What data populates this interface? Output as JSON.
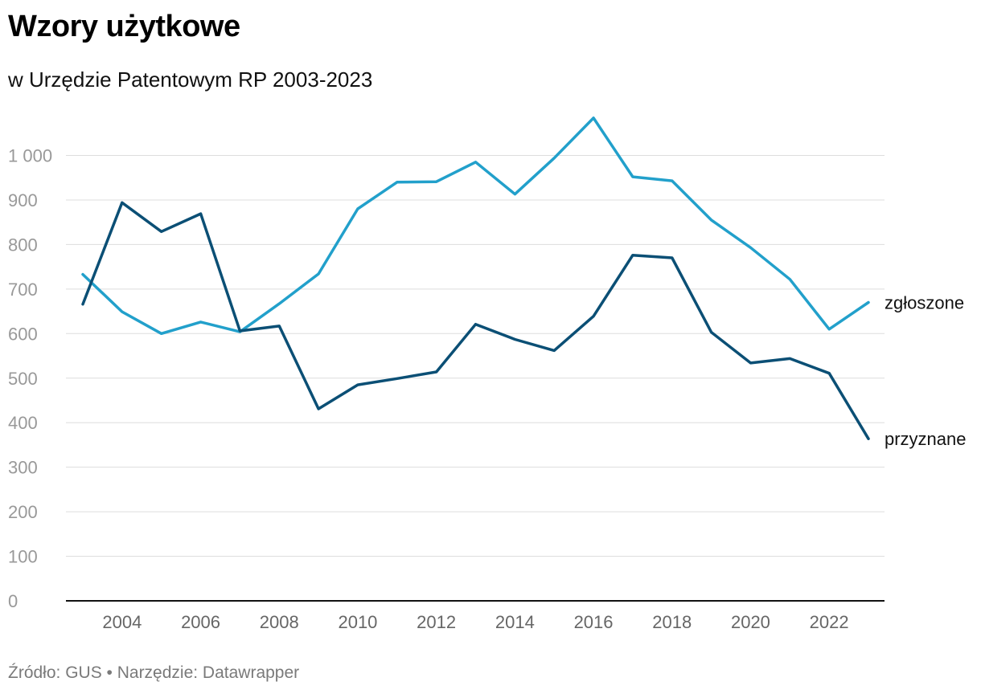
{
  "header": {
    "title": "Wzory użytkowe",
    "subtitle": "w Urzędzie Patentowym RP 2003-2023"
  },
  "footer": {
    "source": "Źródło: GUS • Narzędzie: Datawrapper"
  },
  "chart_data": {
    "type": "line",
    "title": "Wzory użytkowe",
    "subtitle": "w Urzędzie Patentowym RP 2003-2023",
    "x": [
      2003,
      2004,
      2005,
      2006,
      2007,
      2008,
      2009,
      2010,
      2011,
      2012,
      2013,
      2014,
      2015,
      2016,
      2017,
      2018,
      2019,
      2020,
      2021,
      2022,
      2023
    ],
    "series": [
      {
        "name": "zgłoszone",
        "color": "#22a0cb",
        "values": [
          733,
          649,
          600,
          626,
          604,
          667,
          734,
          880,
          940,
          941,
          985,
          913,
          994,
          1084,
          952,
          943,
          855,
          793,
          722,
          610,
          670
        ]
      },
      {
        "name": "przyznane",
        "color": "#0b4f75",
        "values": [
          666,
          894,
          829,
          869,
          606,
          617,
          431,
          485,
          499,
          514,
          621,
          587,
          562,
          639,
          776,
          770,
          603,
          534,
          544,
          511,
          364
        ]
      }
    ],
    "ylim": [
      0,
      1100
    ],
    "y_ticks": [
      0,
      100,
      200,
      300,
      400,
      500,
      600,
      700,
      800,
      900,
      1000
    ],
    "y_tick_labels": [
      "0",
      "100",
      "200",
      "300",
      "400",
      "500",
      "600",
      "700",
      "800",
      "900",
      "1 000"
    ],
    "x_ticks": [
      2004,
      2006,
      2008,
      2010,
      2012,
      2014,
      2016,
      2018,
      2020,
      2022
    ],
    "grid": true,
    "legend": "direct-labels-right"
  }
}
